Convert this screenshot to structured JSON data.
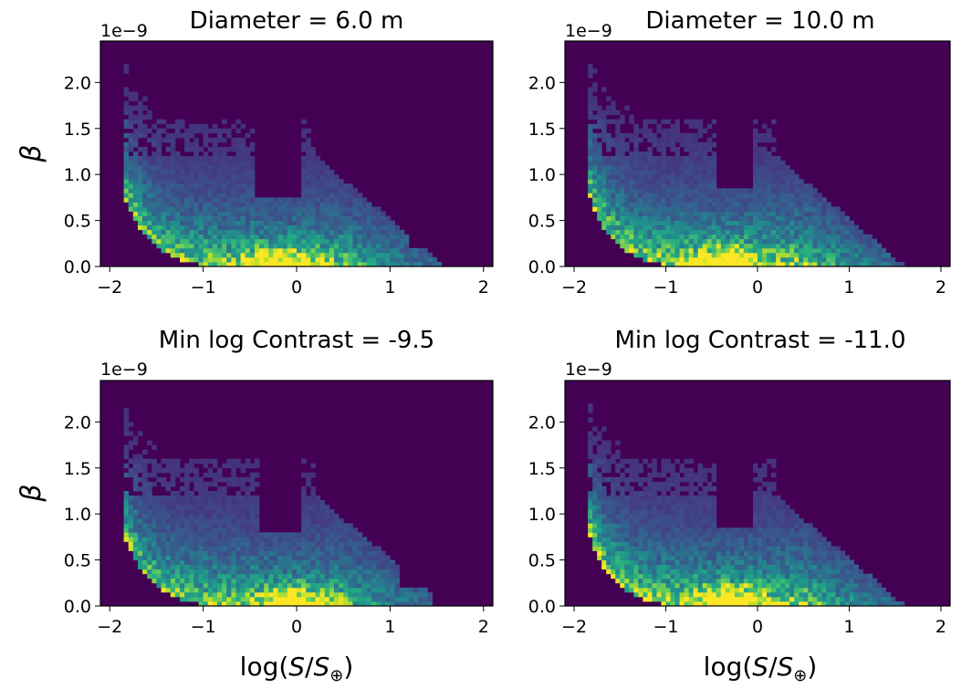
{
  "figure": {
    "colormap": "viridis",
    "background_color": "#440154"
  },
  "chart_data": [
    {
      "type": "heatmap",
      "title": "Diameter = 6.0 m",
      "xlabel": "",
      "ylabel": "β",
      "xlim": [
        -2.1,
        2.1
      ],
      "ylim": [
        0.0,
        2.45
      ],
      "xticks": [
        -2,
        -1,
        0,
        1,
        2
      ],
      "xtick_labels": [
        "−2",
        "−1",
        "0",
        "1",
        "2"
      ],
      "yticks": [
        0.0,
        0.5,
        1.0,
        1.5,
        2.0
      ],
      "ytick_labels": [
        "0.0",
        "0.5",
        "1.0",
        "1.5",
        "2.0"
      ],
      "y_exponent": "1e−9",
      "density_model": {
        "lower_curve": [
          1.38,
          3.6
        ],
        "hot_x": -0.2,
        "notch": [
          -0.45,
          0.05,
          0.75
        ],
        "right_edge": 1.2,
        "spread": 1.0
      }
    },
    {
      "type": "heatmap",
      "title": "Diameter = 10.0 m",
      "xlabel": "",
      "ylabel": "",
      "xlim": [
        -2.1,
        2.1
      ],
      "ylim": [
        0.0,
        2.45
      ],
      "xticks": [
        -2,
        -1,
        0,
        1,
        2
      ],
      "xtick_labels": [
        "−2",
        "−1",
        "0",
        "1",
        "2"
      ],
      "yticks": [
        0.0,
        0.5,
        1.0,
        1.5,
        2.0
      ],
      "ytick_labels": [
        "0.0",
        "0.5",
        "1.0",
        "1.5",
        "2.0"
      ],
      "y_exponent": "1e−9",
      "density_model": {
        "lower_curve": [
          1.4,
          3.6
        ],
        "hot_x": -0.35,
        "notch": [
          -0.45,
          -0.05,
          0.85
        ],
        "right_edge": 1.4,
        "spread": 1.1
      }
    },
    {
      "type": "heatmap",
      "title": "Min log Contrast = -9.5",
      "xlabel": "log(S/S⊕)",
      "ylabel": "β",
      "xlim": [
        -2.1,
        2.1
      ],
      "ylim": [
        0.0,
        2.45
      ],
      "xticks": [
        -2,
        -1,
        0,
        1,
        2
      ],
      "xtick_labels": [
        "−2",
        "−1",
        "0",
        "1",
        "2"
      ],
      "yticks": [
        0.0,
        0.5,
        1.0,
        1.5,
        2.0
      ],
      "ytick_labels": [
        "0.0",
        "0.5",
        "1.0",
        "1.5",
        "2.0"
      ],
      "y_exponent": "1e−9",
      "density_model": {
        "lower_curve": [
          1.38,
          3.6
        ],
        "hot_x": -0.05,
        "notch": [
          -0.4,
          0.05,
          0.8
        ],
        "right_edge": 1.1,
        "spread": 1.0
      }
    },
    {
      "type": "heatmap",
      "title": "Min log Contrast = -11.0",
      "xlabel": "log(S/S⊕)",
      "ylabel": "",
      "xlim": [
        -2.1,
        2.1
      ],
      "ylim": [
        0.0,
        2.45
      ],
      "xticks": [
        -2,
        -1,
        0,
        1,
        2
      ],
      "xtick_labels": [
        "−2",
        "−1",
        "0",
        "1",
        "2"
      ],
      "yticks": [
        0.0,
        0.5,
        1.0,
        1.5,
        2.0
      ],
      "ytick_labels": [
        "0.0",
        "0.5",
        "1.0",
        "1.5",
        "2.0"
      ],
      "y_exponent": "1e−9",
      "density_model": {
        "lower_curve": [
          1.4,
          3.6
        ],
        "hot_x": -0.3,
        "notch": [
          -0.45,
          -0.05,
          0.85
        ],
        "right_edge": 1.4,
        "spread": 1.1
      }
    }
  ]
}
